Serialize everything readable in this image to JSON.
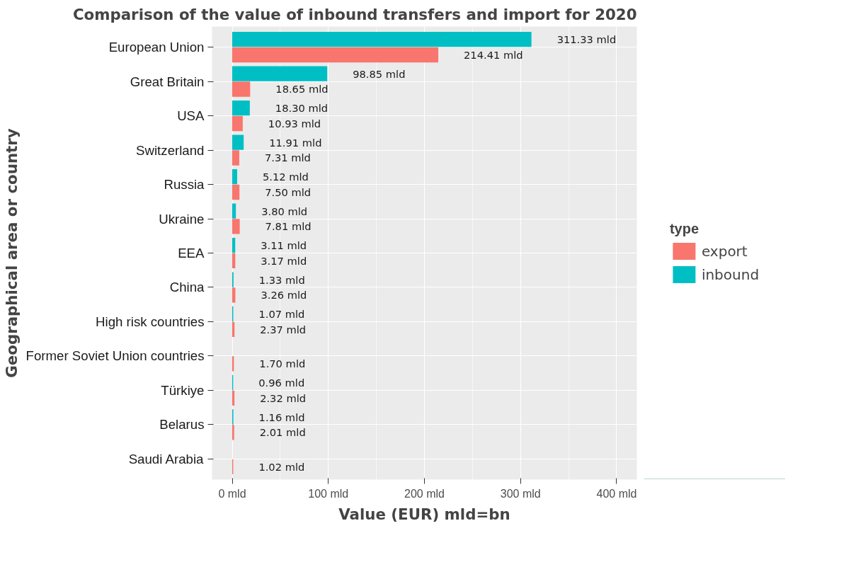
{
  "chart_data": {
    "type": "bar",
    "orientation": "horizontal",
    "title": "Comparison of the value of inbound transfers and import for 2020",
    "xlabel": "Value (EUR) mld=bn",
    "ylabel": "Geographical area or country",
    "categories": [
      "European Union",
      "Great Britain",
      "USA",
      "Switzerland",
      "Russia",
      "Ukraine",
      "EEA",
      "China",
      "High risk countries",
      "Former Soviet Union countries",
      "Türkiye",
      "Belarus",
      "Saudi Arabia"
    ],
    "series": [
      {
        "name": "export",
        "color": "#f8766d",
        "values": [
          214.41,
          18.65,
          10.93,
          7.31,
          7.5,
          7.81,
          3.17,
          3.26,
          2.37,
          1.7,
          2.32,
          2.01,
          1.02
        ],
        "value_labels": [
          "214.41 mld",
          "18.65 mld",
          "10.93 mld",
          "7.31 mld",
          "7.50 mld",
          "7.81 mld",
          "3.17 mld",
          "3.26 mld",
          "2.37 mld",
          "1.70 mld",
          "2.32 mld",
          "2.01 mld",
          "1.02 mld"
        ]
      },
      {
        "name": "inbound",
        "color": "#00bfc4",
        "values": [
          311.33,
          98.85,
          18.3,
          11.91,
          5.12,
          3.8,
          3.11,
          1.33,
          1.07,
          null,
          0.96,
          1.16,
          null
        ],
        "value_labels": [
          "311.33 mld",
          "98.85 mld",
          "18.30 mld",
          "11.91 mld",
          "5.12 mld",
          "3.80 mld",
          "3.11 mld",
          "1.33 mld",
          "1.07 mld",
          null,
          "0.96 mld",
          "1.16 mld",
          null
        ]
      }
    ],
    "xlim": [
      -21,
      421
    ],
    "xticks": [
      {
        "value": 0,
        "label": "0 mld"
      },
      {
        "value": 100,
        "label": "100 mld"
      },
      {
        "value": 200,
        "label": "200 mld"
      },
      {
        "value": 300,
        "label": "300 mld"
      },
      {
        "value": 400,
        "label": "400 mld"
      }
    ],
    "grid": true,
    "legend": "right",
    "legend_title": "type"
  }
}
